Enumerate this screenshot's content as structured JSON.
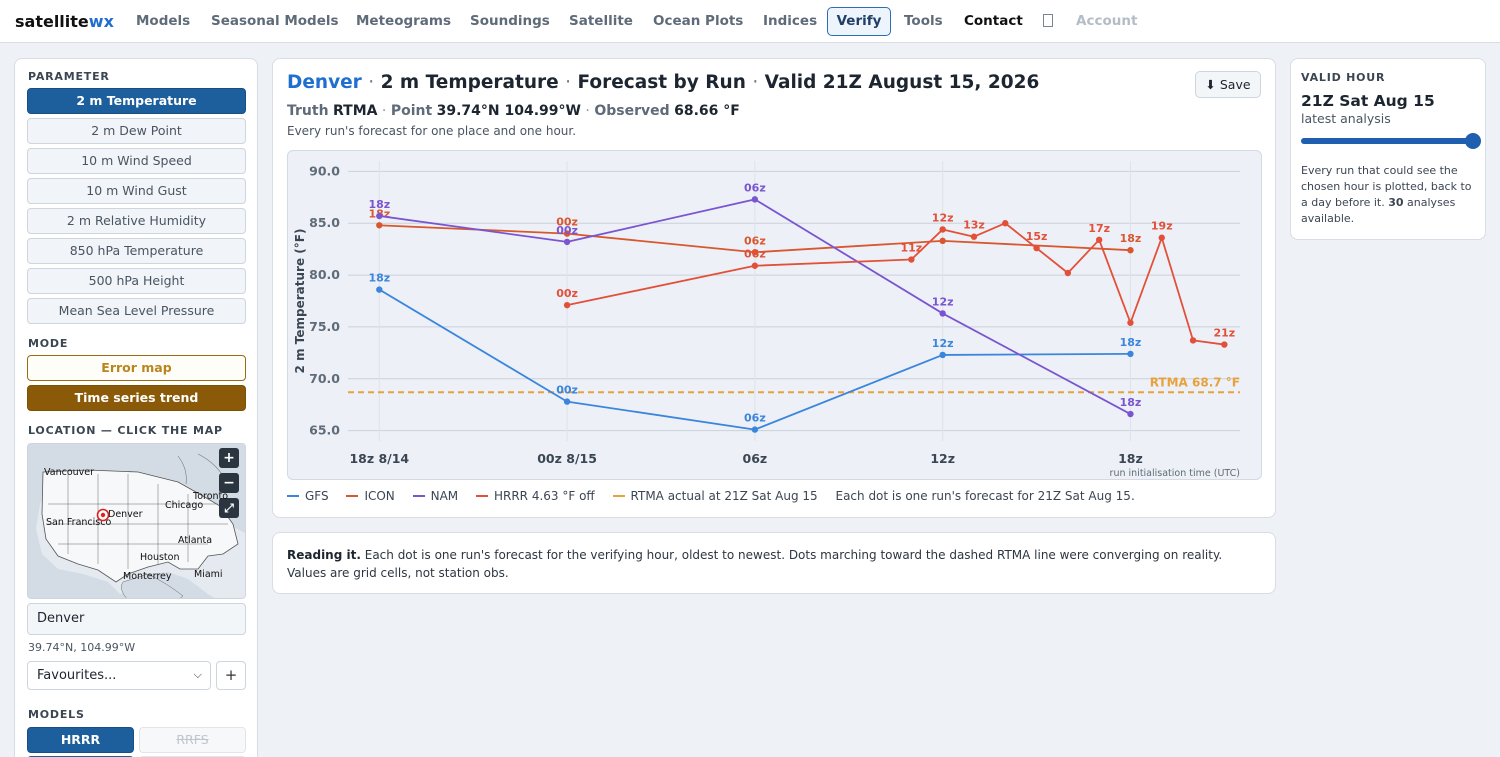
{
  "nav": {
    "brand_main": "satellite",
    "brand_accent": "wx",
    "items": [
      "Models",
      "Seasonal Models",
      "Meteograms",
      "Soundings",
      "Satellite",
      "Ocean Plots",
      "Indices",
      "Verify",
      "Tools",
      "Contact",
      "Account"
    ],
    "active": "Verify"
  },
  "sidebar": {
    "parameter_label": "PARAMETER",
    "parameters": [
      "2 m Temperature",
      "2 m Dew Point",
      "10 m Wind Speed",
      "10 m Wind Gust",
      "2 m Relative Humidity",
      "850 hPa Temperature",
      "500 hPa Height",
      "Mean Sea Level Pressure"
    ],
    "active_parameter": "2 m Temperature",
    "mode_label": "MODE",
    "modes": [
      "Error map",
      "Time series trend"
    ],
    "active_mode": "Time series trend",
    "location_label": "LOCATION — CLICK THE MAP",
    "map": {
      "zoom_in": "+",
      "zoom_out": "−",
      "expand": "⤢",
      "cities": [
        "Vancouver",
        "Toronto",
        "Chicago",
        "Denver",
        "San Francisco",
        "Atlanta",
        "Houston",
        "Monterrey",
        "Miami"
      ]
    },
    "location_value": "Denver",
    "coords": "39.74°N, 104.99°W",
    "favourites_placeholder": "Favourites...",
    "fav_add": "+",
    "models_label": "MODELS",
    "models": [
      {
        "name": "HRRR",
        "enabled": true
      },
      {
        "name": "RRFS",
        "enabled": false
      }
    ]
  },
  "main": {
    "title_city": "Denver",
    "title_sep": "·",
    "title_param": "2 m Temperature",
    "title_mode": "Forecast by Run",
    "title_valid": "Valid 21Z August 15, 2026",
    "save_label": "⬇ Save",
    "truth_key": "Truth",
    "truth_val": "RTMA",
    "point_key": "Point",
    "point_val": "39.74°N 104.99°W",
    "observed_key": "Observed",
    "observed_val": "68.66 °F",
    "description": "Every run's forecast for one place and one hour.",
    "legend": [
      {
        "label": "GFS",
        "color": "#3b86dc"
      },
      {
        "label": "ICON",
        "color": "#d9572e"
      },
      {
        "label": "NAM",
        "color": "#7b55d1"
      },
      {
        "label": "HRRR 4.63 °F off",
        "color": "#e3503a"
      },
      {
        "label": "RTMA actual at 21Z Sat Aug 15",
        "color": "#e8a23c"
      }
    ],
    "legend_note": "Each dot is one run's forecast for 21Z Sat Aug 15."
  },
  "chart_data": {
    "type": "line",
    "title": "",
    "xlabel": "run initialisation time (UTC)",
    "ylabel": "2 m Temperature (°F)",
    "ylim": [
      64,
      91
    ],
    "yticks": [
      65.0,
      70.0,
      75.0,
      80.0,
      85.0,
      90.0
    ],
    "x_ticks": [
      {
        "x": 0,
        "label": "18z 8/14"
      },
      {
        "x": 6,
        "label": "00z 8/15"
      },
      {
        "x": 12,
        "label": "06z"
      },
      {
        "x": 18,
        "label": "12z"
      },
      {
        "x": 24,
        "label": "18z"
      }
    ],
    "xlim": [
      -1,
      27.5
    ],
    "grid": true,
    "reference_line": {
      "label": "RTMA 68.7 °F",
      "value": 68.7
    },
    "series": [
      {
        "name": "GFS",
        "color": "#3b86dc",
        "points": [
          {
            "x": 0,
            "y": 78.6,
            "label": "18z"
          },
          {
            "x": 6,
            "y": 67.8,
            "label": "00z"
          },
          {
            "x": 12,
            "y": 65.1,
            "label": "06z"
          },
          {
            "x": 18,
            "y": 72.3,
            "label": "12z"
          },
          {
            "x": 24,
            "y": 72.4,
            "label": "18z"
          }
        ]
      },
      {
        "name": "ICON",
        "color": "#d9572e",
        "points": [
          {
            "x": 0,
            "y": 84.8,
            "label": "18z"
          },
          {
            "x": 6,
            "y": 84.0,
            "label": "00z"
          },
          {
            "x": 12,
            "y": 82.2,
            "label": "06z"
          },
          {
            "x": 18,
            "y": 83.3,
            "label": ""
          },
          {
            "x": 24,
            "y": 82.4,
            "label": "18z"
          }
        ]
      },
      {
        "name": "NAM",
        "color": "#7b55d1",
        "points": [
          {
            "x": 0,
            "y": 85.7,
            "label": "18z"
          },
          {
            "x": 6,
            "y": 83.2,
            "label": "00z"
          },
          {
            "x": 12,
            "y": 87.3,
            "label": "06z"
          },
          {
            "x": 18,
            "y": 76.3,
            "label": "12z"
          },
          {
            "x": 24,
            "y": 66.6,
            "label": "18z"
          }
        ]
      },
      {
        "name": "HRRR",
        "color": "#e3503a",
        "points": [
          {
            "x": 6,
            "y": 77.1,
            "label": "00z"
          },
          {
            "x": 12,
            "y": 80.9,
            "label": "06z"
          },
          {
            "x": 17,
            "y": 81.5,
            "label": "11z"
          },
          {
            "x": 18,
            "y": 84.4,
            "label": "12z"
          },
          {
            "x": 19,
            "y": 83.7,
            "label": "13z"
          },
          {
            "x": 20,
            "y": 85.0,
            "label": ""
          },
          {
            "x": 21,
            "y": 82.6,
            "label": "15z"
          },
          {
            "x": 22,
            "y": 80.2,
            "label": ""
          },
          {
            "x": 23,
            "y": 83.4,
            "label": "17z"
          },
          {
            "x": 24,
            "y": 75.4,
            "label": ""
          },
          {
            "x": 25,
            "y": 83.6,
            "label": "19z"
          },
          {
            "x": 26,
            "y": 73.7,
            "label": ""
          },
          {
            "x": 27,
            "y": 73.3,
            "label": "21z"
          }
        ]
      }
    ]
  },
  "valid_hour": {
    "label": "VALID HOUR",
    "value": "21Z Sat Aug 15",
    "sub": "latest analysis",
    "slider_fraction": 1.0,
    "note_pre": "Every run that could see the chosen hour is plotted, back to a day before it.",
    "note_count": "30",
    "note_post": "analyses available."
  },
  "reading": {
    "lead": "Reading it.",
    "text": "Each dot is one run's forecast for the verifying hour, oldest to newest. Dots marching toward the dashed RTMA line were converging on reality. Values are grid cells, not station obs."
  }
}
